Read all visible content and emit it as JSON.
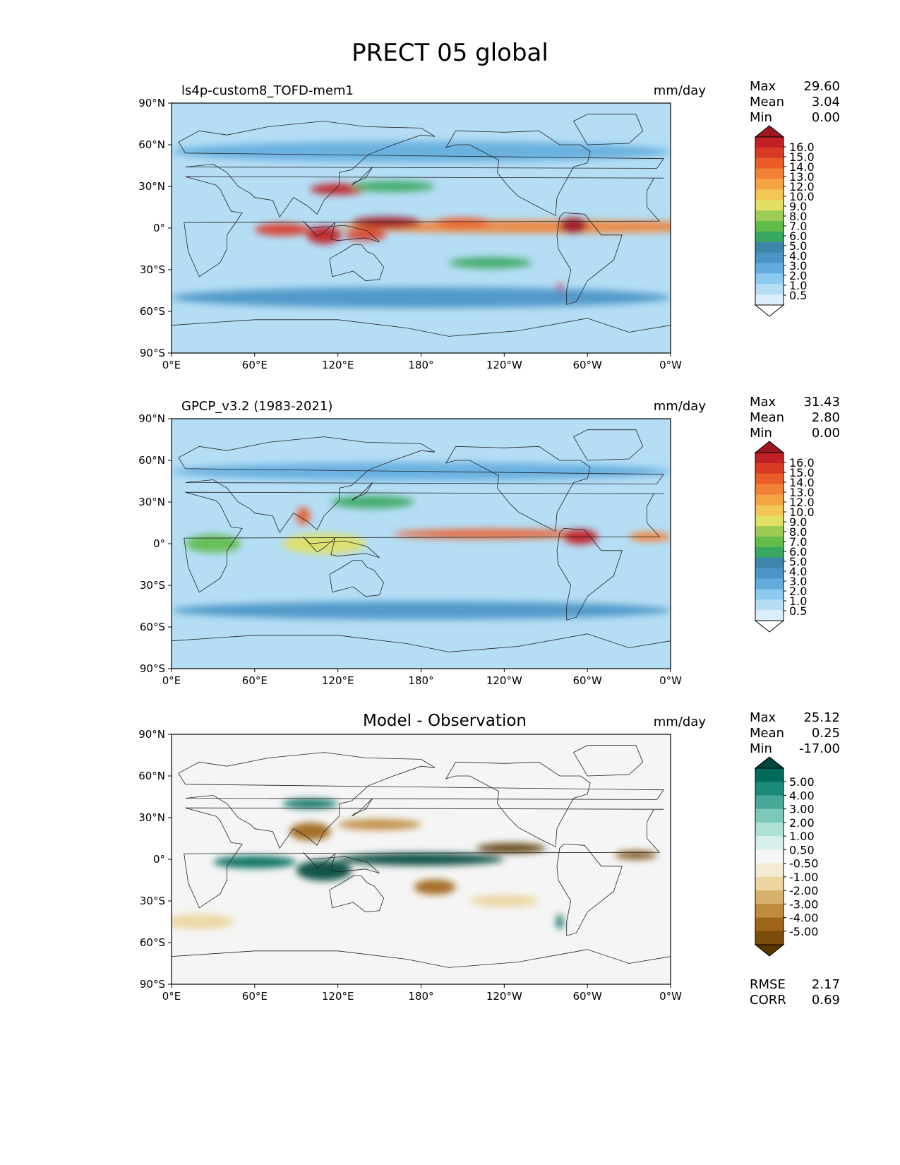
{
  "title": "PRECT 05 global",
  "axes": {
    "xticks": [
      "0°E",
      "60°E",
      "120°E",
      "180°",
      "120°W",
      "60°W",
      "0°W"
    ],
    "yticks": [
      "90°N",
      "60°N",
      "30°N",
      "0°",
      "30°S",
      "60°S",
      "90°S"
    ]
  },
  "colors": {
    "precip": [
      "#ffffff",
      "#dbeffa",
      "#b5def5",
      "#8ccaef",
      "#64acdd",
      "#4a94c6",
      "#3d86aa",
      "#3aa760",
      "#62bc4a",
      "#9ccc55",
      "#e1e063",
      "#f4c654",
      "#f5a444",
      "#f28135",
      "#ea5d2a",
      "#d93a26",
      "#c12025",
      "#9c1720"
    ],
    "diff": [
      "#573400",
      "#7c4c0a",
      "#9e6418",
      "#bf8a3d",
      "#d7b06b",
      "#ecd5a0",
      "#f5ebd2",
      "#f5f5f5",
      "#d7efeb",
      "#aee0d6",
      "#7cc8b9",
      "#46a897",
      "#1b8a7a",
      "#006b5c",
      "#00463b"
    ]
  },
  "panels": [
    {
      "title": "ls4p-custom8_TOFD-mem1",
      "units": "mm/day",
      "stats": [
        [
          "Max",
          "29.60"
        ],
        [
          "Mean",
          "3.04"
        ],
        [
          "Min",
          "0.00"
        ]
      ],
      "levels": [
        "16.0",
        "15.0",
        "14.0",
        "13.0",
        "12.0",
        "10.0",
        "9.0",
        "8.0",
        "7.0",
        "6.0",
        "5.0",
        "4.0",
        "3.0",
        "2.0",
        "1.0",
        "0.5"
      ]
    },
    {
      "title": "GPCP_v3.2 (1983-2021)",
      "units": "mm/day",
      "stats": [
        [
          "Max",
          "31.43"
        ],
        [
          "Mean",
          "2.80"
        ],
        [
          "Min",
          "0.00"
        ]
      ],
      "levels": [
        "16.0",
        "15.0",
        "14.0",
        "13.0",
        "12.0",
        "10.0",
        "9.0",
        "8.0",
        "7.0",
        "6.0",
        "5.0",
        "4.0",
        "3.0",
        "2.0",
        "1.0",
        "0.5"
      ]
    },
    {
      "title": "Model - Observation",
      "units": "mm/day",
      "stats": [
        [
          "Max",
          "25.12"
        ],
        [
          "Mean",
          "0.25"
        ],
        [
          "Min",
          "-17.00"
        ]
      ],
      "levels": [
        "5.00",
        "4.00",
        "3.00",
        "2.00",
        "1.00",
        "0.50",
        "-0.50",
        "-1.00",
        "-2.00",
        "-3.00",
        "-4.00",
        "-5.00"
      ],
      "extra": [
        [
          "RMSE",
          "2.17"
        ],
        [
          "CORR",
          "0.69"
        ]
      ]
    }
  ],
  "chart_data": [
    {
      "type": "heatmap",
      "title": "ls4p-custom8_TOFD-mem1",
      "units": "mm/day",
      "x_range": [
        0,
        360
      ],
      "y_range": [
        -90,
        90
      ],
      "levels": [
        0.5,
        1.0,
        2.0,
        3.0,
        4.0,
        5.0,
        6.0,
        7.0,
        8.0,
        9.0,
        10.0,
        12.0,
        13.0,
        14.0,
        15.0,
        16.0
      ],
      "colormap": "precip",
      "stats": {
        "max": 29.6,
        "mean": 3.04,
        "min": 0.0
      },
      "features": [
        {
          "lon": 270,
          "lat": 1,
          "w": 300,
          "h": 6,
          "v": 12
        },
        {
          "lon": 155,
          "lat": 4,
          "w": 50,
          "h": 5,
          "v": 16
        },
        {
          "lon": 210,
          "lat": 4,
          "w": 40,
          "h": 4,
          "v": 13
        },
        {
          "lon": 110,
          "lat": -5,
          "w": 25,
          "h": 10,
          "v": 15
        },
        {
          "lon": 80,
          "lat": -1,
          "w": 40,
          "h": 6,
          "v": 14
        },
        {
          "lon": 140,
          "lat": -5,
          "w": 30,
          "h": 5,
          "v": 14
        },
        {
          "lon": 290,
          "lat": 2,
          "w": 20,
          "h": 8,
          "v": 16
        },
        {
          "lon": 120,
          "lat": 28,
          "w": 40,
          "h": 5,
          "v": 15
        },
        {
          "lon": 160,
          "lat": 30,
          "w": 60,
          "h": 5,
          "v": 6
        },
        {
          "lon": 280,
          "lat": -45,
          "w": 5,
          "h": 8,
          "v": 14
        },
        {
          "lon": 230,
          "lat": -25,
          "w": 60,
          "h": 5,
          "v": 6
        },
        {
          "lon": 180,
          "lat": -50,
          "w": 360,
          "h": 12,
          "v": 4
        },
        {
          "lon": 180,
          "lat": 55,
          "w": 360,
          "h": 12,
          "v": 3
        }
      ]
    },
    {
      "type": "heatmap",
      "title": "GPCP_v3.2 (1983-2021)",
      "units": "mm/day",
      "x_range": [
        0,
        360
      ],
      "y_range": [
        -90,
        90
      ],
      "levels": [
        0.5,
        1.0,
        2.0,
        3.0,
        4.0,
        5.0,
        6.0,
        7.0,
        8.0,
        9.0,
        10.0,
        12.0,
        13.0,
        14.0,
        15.0,
        16.0
      ],
      "colormap": "precip",
      "stats": {
        "max": 31.43,
        "mean": 2.8,
        "min": 0.0
      },
      "features": [
        {
          "lon": 230,
          "lat": 7,
          "w": 140,
          "h": 4,
          "v": 13
        },
        {
          "lon": 295,
          "lat": 5,
          "w": 25,
          "h": 8,
          "v": 15
        },
        {
          "lon": 345,
          "lat": 5,
          "w": 30,
          "h": 4,
          "v": 12
        },
        {
          "lon": 110,
          "lat": 0,
          "w": 60,
          "h": 12,
          "v": 9
        },
        {
          "lon": 95,
          "lat": 20,
          "w": 10,
          "h": 10,
          "v": 13
        },
        {
          "lon": 145,
          "lat": 30,
          "w": 60,
          "h": 6,
          "v": 6
        },
        {
          "lon": 180,
          "lat": -48,
          "w": 360,
          "h": 10,
          "v": 4
        },
        {
          "lon": 180,
          "lat": 52,
          "w": 360,
          "h": 10,
          "v": 3
        },
        {
          "lon": 30,
          "lat": 0,
          "w": 40,
          "h": 10,
          "v": 7
        }
      ]
    },
    {
      "type": "heatmap",
      "title": "Model - Observation",
      "units": "mm/day",
      "x_range": [
        0,
        360
      ],
      "y_range": [
        -90,
        90
      ],
      "levels": [
        -5.0,
        -4.0,
        -3.0,
        -2.0,
        -1.0,
        -0.5,
        0.5,
        1.0,
        2.0,
        3.0,
        4.0,
        5.0
      ],
      "colormap": "diff",
      "stats": {
        "max": 25.12,
        "mean": 0.25,
        "min": -17.0,
        "rmse": 2.17,
        "corr": 0.69
      },
      "features": [
        {
          "lon": 180,
          "lat": 0,
          "w": 120,
          "h": 6,
          "v": 6
        },
        {
          "lon": 110,
          "lat": -8,
          "w": 40,
          "h": 12,
          "v": 6
        },
        {
          "lon": 60,
          "lat": -2,
          "w": 60,
          "h": 6,
          "v": 5
        },
        {
          "lon": 245,
          "lat": 8,
          "w": 50,
          "h": 4,
          "v": -6
        },
        {
          "lon": 335,
          "lat": 3,
          "w": 30,
          "h": 3,
          "v": -5
        },
        {
          "lon": 150,
          "lat": 25,
          "w": 60,
          "h": 5,
          "v": -3
        },
        {
          "lon": 100,
          "lat": 20,
          "w": 30,
          "h": 10,
          "v": -4
        },
        {
          "lon": 190,
          "lat": -20,
          "w": 30,
          "h": 8,
          "v": -4
        },
        {
          "lon": 240,
          "lat": -30,
          "w": 50,
          "h": 6,
          "v": -2
        },
        {
          "lon": 20,
          "lat": -45,
          "w": 50,
          "h": 8,
          "v": -2
        },
        {
          "lon": 280,
          "lat": -45,
          "w": 5,
          "h": 8,
          "v": 5
        },
        {
          "lon": 100,
          "lat": 40,
          "w": 40,
          "h": 4,
          "v": 5
        }
      ]
    }
  ]
}
